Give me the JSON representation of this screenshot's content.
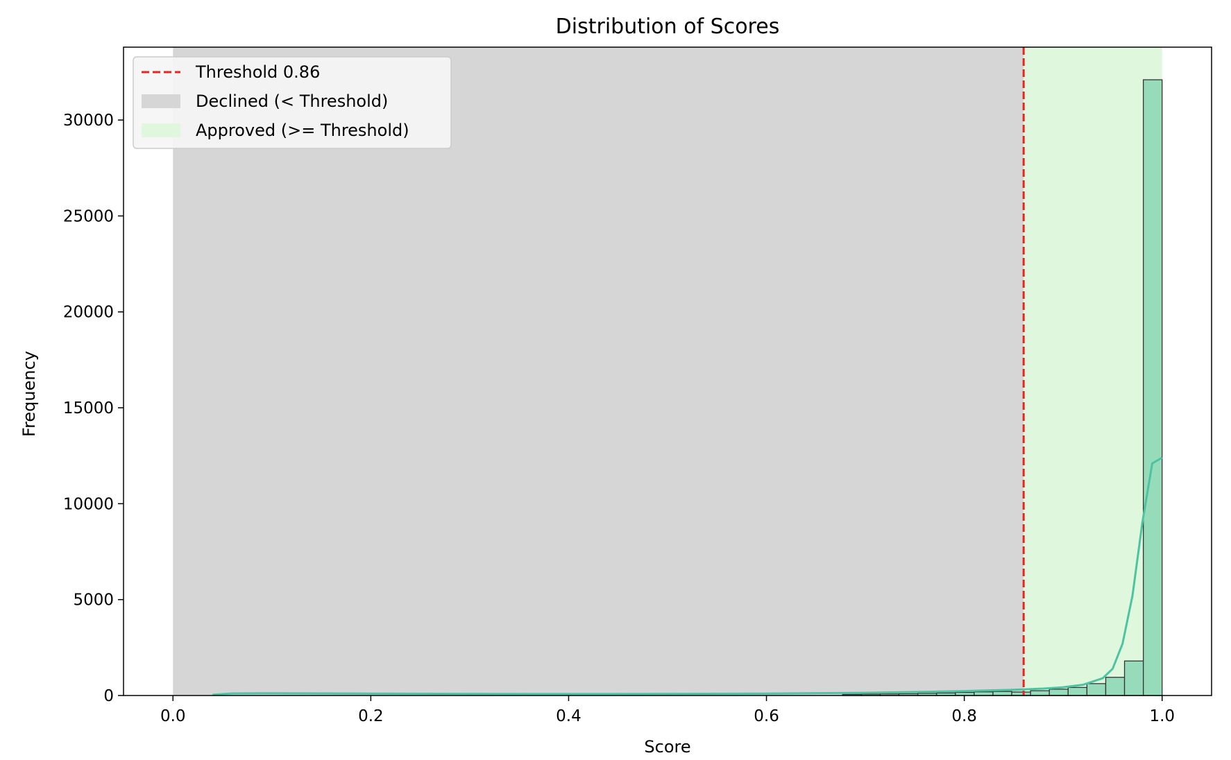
{
  "chart_data": {
    "type": "bar",
    "title": "Distribution of Scores",
    "xlabel": "Score",
    "ylabel": "Frequency",
    "xlim": [
      -0.05,
      1.05
    ],
    "ylim": [
      0,
      33800
    ],
    "xticks": [
      "0.0",
      "0.2",
      "0.4",
      "0.6",
      "0.8",
      "1.0"
    ],
    "yticks": [
      "0",
      "5000",
      "10000",
      "15000",
      "20000",
      "25000",
      "30000"
    ],
    "grid": false,
    "legend_position": "top-left",
    "threshold": 0.86,
    "regions": [
      {
        "name": "Declined (< Threshold)",
        "x0": 0.0,
        "x1": 0.86,
        "color": "#d6d6d6"
      },
      {
        "name": "Approved (>= Threshold)",
        "x0": 0.86,
        "x1": 1.0,
        "color": "#def7dd"
      }
    ],
    "legend": [
      {
        "label": "Threshold 0.86",
        "kind": "line",
        "color": "#e8261f"
      },
      {
        "label": "Declined (< Threshold)",
        "kind": "patch",
        "color": "#d6d6d6"
      },
      {
        "label": "Approved (>= Threshold)",
        "kind": "patch",
        "color": "#def7dd"
      }
    ],
    "histogram": {
      "bin_width": 0.019,
      "bin_starts": [
        0.677,
        0.696,
        0.715,
        0.734,
        0.753,
        0.772,
        0.791,
        0.81,
        0.829,
        0.848,
        0.867,
        0.886,
        0.905,
        0.924,
        0.943,
        0.962,
        0.981
      ],
      "values": [
        60,
        70,
        80,
        90,
        110,
        130,
        160,
        190,
        210,
        180,
        250,
        330,
        420,
        620,
        950,
        1800,
        32100
      ],
      "bar_color": "#96dcba",
      "edge_color": "#333333"
    },
    "kde": {
      "color": "#4dc3a2",
      "x": [
        0.04,
        0.06,
        0.1,
        0.2,
        0.3,
        0.4,
        0.5,
        0.6,
        0.7,
        0.75,
        0.8,
        0.85,
        0.88,
        0.9,
        0.92,
        0.94,
        0.95,
        0.96,
        0.97,
        0.98,
        0.99,
        1.0
      ],
      "y": [
        40,
        110,
        120,
        100,
        85,
        80,
        85,
        100,
        140,
        180,
        230,
        300,
        360,
        430,
        560,
        900,
        1400,
        2700,
        5200,
        9000,
        12100,
        12400
      ]
    }
  }
}
